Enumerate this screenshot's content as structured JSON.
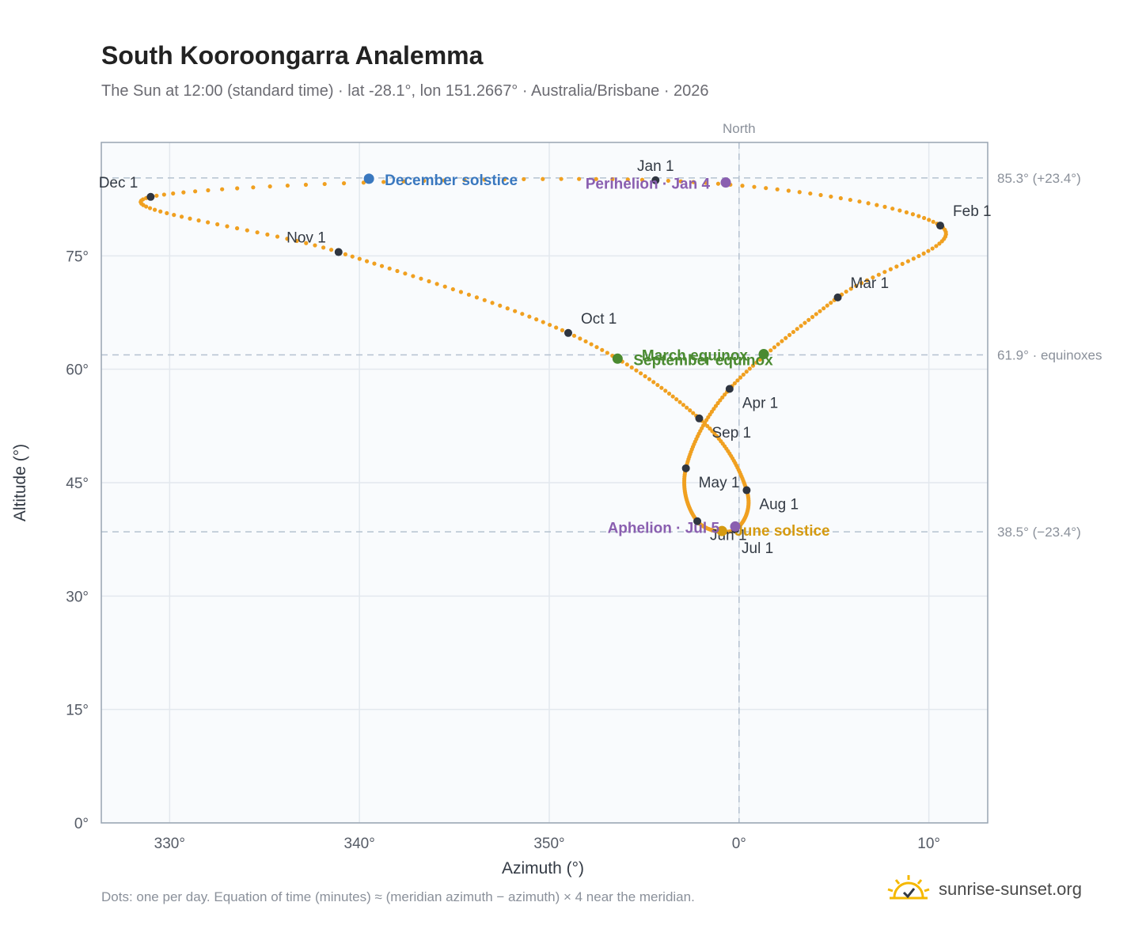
{
  "chart_data": {
    "type": "scatter",
    "title": "South Kooroongarra Analemma",
    "subtitle": "The Sun at 12:00 (standard time) · lat -28.1°, lon 151.2667° · Australia/Brisbane · 2026",
    "xlabel": "Azimuth (°)",
    "ylabel": "Altitude (°)",
    "north_label": "North",
    "xlim": [
      -33.6,
      13.1
    ],
    "ylim": [
      0,
      90
    ],
    "x_ticks": [
      {
        "v": -30,
        "label": "330°"
      },
      {
        "v": -20,
        "label": "340°"
      },
      {
        "v": -10,
        "label": "350°"
      },
      {
        "v": 0,
        "label": "0°"
      },
      {
        "v": 10,
        "label": "10°"
      }
    ],
    "y_ticks": [
      {
        "v": 0,
        "label": "0°"
      },
      {
        "v": 15,
        "label": "15°"
      },
      {
        "v": 30,
        "label": "30°"
      },
      {
        "v": 45,
        "label": "45°"
      },
      {
        "v": 60,
        "label": "60°"
      },
      {
        "v": 75,
        "label": "75°"
      }
    ],
    "grid": true,
    "reference_lines": [
      {
        "y": 85.3,
        "label": "85.3° (+23.4°)"
      },
      {
        "y": 61.9,
        "label": "61.9° · equinoxes"
      },
      {
        "y": 38.5,
        "label": "38.5° (−23.4°)"
      }
    ],
    "series_color": "#f0a020",
    "months": [
      {
        "label": "Jan 1",
        "x": -4.4,
        "y": 85.0
      },
      {
        "label": "Feb 1",
        "x": 10.6,
        "y": 79.0
      },
      {
        "label": "Mar 1",
        "x": 5.2,
        "y": 69.5
      },
      {
        "label": "Apr 1",
        "x": -0.5,
        "y": 57.4
      },
      {
        "label": "May 1",
        "x": -2.8,
        "y": 46.9
      },
      {
        "label": "Jun 1",
        "x": -2.2,
        "y": 39.9
      },
      {
        "label": "Jul 1",
        "x": -0.2,
        "y": 38.8
      },
      {
        "label": "Aug 1",
        "x": 0.4,
        "y": 44.0
      },
      {
        "label": "Sep 1",
        "x": -2.1,
        "y": 53.5
      },
      {
        "label": "Oct 1",
        "x": -9.0,
        "y": 64.8
      },
      {
        "label": "Nov 1",
        "x": -21.1,
        "y": 75.5
      },
      {
        "label": "Dec 1",
        "x": -31.0,
        "y": 82.8
      }
    ],
    "events": [
      {
        "label": "December solstice",
        "x": -19.5,
        "y": 85.2,
        "color": "#3a78bf"
      },
      {
        "label": "Perihelion · Jan 4",
        "x": -0.7,
        "y": 84.7,
        "color": "#8a5fb0"
      },
      {
        "label": "March equinox",
        "x": 1.3,
        "y": 62.0,
        "color": "#4a8a30"
      },
      {
        "label": "September equinox",
        "x": -6.4,
        "y": 61.4,
        "color": "#4a8a30"
      },
      {
        "label": "June solstice",
        "x": -0.9,
        "y": 38.6,
        "color": "#d59a10"
      },
      {
        "label": "Aphelion · Jul 5",
        "x": -0.2,
        "y": 39.2,
        "color": "#8a5fb0"
      }
    ]
  },
  "footnote": "Dots: one per day. Equation of time (minutes) ≈ (meridian azimuth − azimuth) × 4 near the meridian.",
  "brand": {
    "name": "sunrise-sunset.org",
    "icon": "sun-check-icon"
  }
}
